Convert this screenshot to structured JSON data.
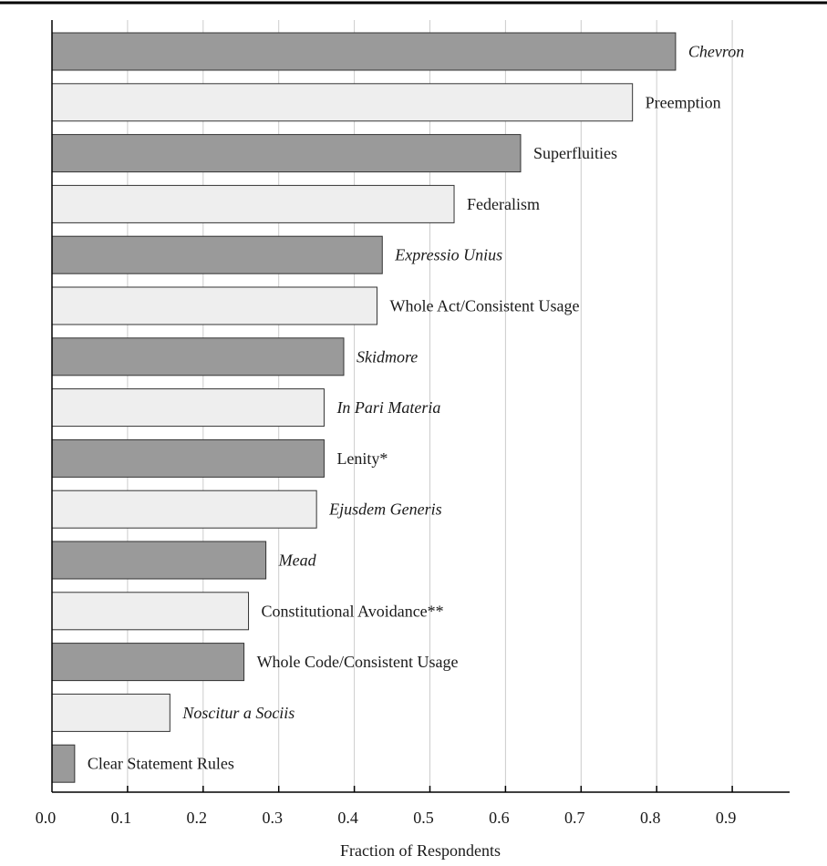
{
  "chart_data": {
    "type": "bar",
    "orientation": "horizontal",
    "xlabel": "Fraction of Respondents",
    "ylabel": "",
    "xlim": [
      0.0,
      1.0
    ],
    "xticks": [
      0.0,
      0.1,
      0.2,
      0.3,
      0.4,
      0.5,
      0.6,
      0.7,
      0.8,
      0.9
    ],
    "xtick_labels": [
      "0.0",
      "0.1",
      "0.2",
      "0.3",
      "0.4",
      "0.5",
      "0.6",
      "0.7",
      "0.8",
      "0.9"
    ],
    "grid": "vertical",
    "colors": {
      "dark": "#9a9a9a",
      "light": "#eeeeee",
      "grid": "#cccccc",
      "frame": "#000000"
    },
    "bars": [
      {
        "label": "Chevron",
        "value": 0.825,
        "italic": true,
        "shade": "dark"
      },
      {
        "label": "Preemption",
        "value": 0.768,
        "italic": false,
        "shade": "light"
      },
      {
        "label": "Superfluities",
        "value": 0.62,
        "italic": false,
        "shade": "dark"
      },
      {
        "label": "Federalism",
        "value": 0.532,
        "italic": false,
        "shade": "light"
      },
      {
        "label": "Expressio Unius",
        "value": 0.437,
        "italic": true,
        "shade": "dark"
      },
      {
        "label": "Whole Act/Consistent Usage",
        "value": 0.43,
        "italic": false,
        "shade": "light"
      },
      {
        "label": "Skidmore",
        "value": 0.386,
        "italic": true,
        "shade": "dark"
      },
      {
        "label": "In Pari Materia",
        "value": 0.36,
        "italic": true,
        "shade": "light"
      },
      {
        "label": "Lenity*",
        "value": 0.36,
        "italic": false,
        "shade": "dark"
      },
      {
        "label": "Ejusdem Generis",
        "value": 0.35,
        "italic": true,
        "shade": "light"
      },
      {
        "label": "Mead",
        "value": 0.283,
        "italic": true,
        "shade": "dark"
      },
      {
        "label": "Constitutional Avoidance**",
        "value": 0.26,
        "italic": false,
        "shade": "light"
      },
      {
        "label": "Whole Code/Consistent Usage",
        "value": 0.254,
        "italic": false,
        "shade": "dark"
      },
      {
        "label": "Noscitur a Sociis",
        "value": 0.156,
        "italic": true,
        "shade": "light"
      },
      {
        "label": "Clear Statement Rules",
        "value": 0.03,
        "italic": false,
        "shade": "dark"
      }
    ]
  }
}
